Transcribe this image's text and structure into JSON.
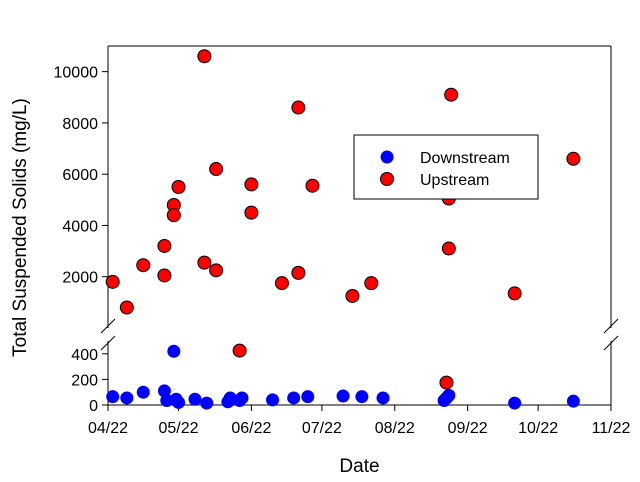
{
  "chart_data": {
    "type": "scatter",
    "title": "",
    "xlabel": "Date",
    "ylabel": "Total Suspended Solids (mg/L)",
    "x_unit": "date (MM/YY)",
    "x_ticks": [
      "04/22",
      "05/22",
      "06/22",
      "07/22",
      "08/22",
      "09/22",
      "10/22",
      "11/22"
    ],
    "xlim": [
      "2022-04-01",
      "2022-11-01"
    ],
    "y_axis_broken": true,
    "y_lower_range": [
      0,
      500
    ],
    "y_lower_ticks": [
      0,
      200,
      400
    ],
    "y_upper_range": [
      0,
      11000
    ],
    "y_upper_ticks": [
      2000,
      4000,
      6000,
      8000,
      10000
    ],
    "grid": false,
    "legend": "upper-right inside plot",
    "series": [
      {
        "name": "Downstream",
        "color": "#0000ff",
        "points": [
          {
            "x": "2022-04-03",
            "y": 65
          },
          {
            "x": "2022-04-09",
            "y": 55
          },
          {
            "x": "2022-04-16",
            "y": 100
          },
          {
            "x": "2022-04-25",
            "y": 110
          },
          {
            "x": "2022-04-26",
            "y": 35
          },
          {
            "x": "2022-04-29",
            "y": 420
          },
          {
            "x": "2022-04-30",
            "y": 45
          },
          {
            "x": "2022-05-01",
            "y": 20
          },
          {
            "x": "2022-05-08",
            "y": 45
          },
          {
            "x": "2022-05-13",
            "y": 15
          },
          {
            "x": "2022-05-22",
            "y": 25
          },
          {
            "x": "2022-05-23",
            "y": 55
          },
          {
            "x": "2022-05-27",
            "y": 35
          },
          {
            "x": "2022-05-28",
            "y": 55
          },
          {
            "x": "2022-06-10",
            "y": 40
          },
          {
            "x": "2022-06-19",
            "y": 55
          },
          {
            "x": "2022-06-25",
            "y": 65
          },
          {
            "x": "2022-07-10",
            "y": 70
          },
          {
            "x": "2022-07-18",
            "y": 65
          },
          {
            "x": "2022-07-27",
            "y": 55
          },
          {
            "x": "2022-08-22",
            "y": 35
          },
          {
            "x": "2022-08-23",
            "y": 55
          },
          {
            "x": "2022-08-24",
            "y": 75
          },
          {
            "x": "2022-09-21",
            "y": 15
          },
          {
            "x": "2022-10-16",
            "y": 30
          }
        ]
      },
      {
        "name": "Upstream",
        "color": "#ff0000",
        "points": [
          {
            "x": "2022-04-03",
            "y": 1800
          },
          {
            "x": "2022-04-09",
            "y": 800
          },
          {
            "x": "2022-04-16",
            "y": 2450
          },
          {
            "x": "2022-04-25",
            "y": 3200
          },
          {
            "x": "2022-04-25",
            "y": 2050
          },
          {
            "x": "2022-04-29",
            "y": 4800
          },
          {
            "x": "2022-04-29",
            "y": 4400
          },
          {
            "x": "2022-05-01",
            "y": 5500
          },
          {
            "x": "2022-05-12",
            "y": 10600
          },
          {
            "x": "2022-05-12",
            "y": 2550
          },
          {
            "x": "2022-05-17",
            "y": 6200
          },
          {
            "x": "2022-05-17",
            "y": 2250
          },
          {
            "x": "2022-05-27",
            "y": 425
          },
          {
            "x": "2022-06-01",
            "y": 5600
          },
          {
            "x": "2022-06-01",
            "y": 4500
          },
          {
            "x": "2022-06-14",
            "y": 1750
          },
          {
            "x": "2022-06-21",
            "y": 8600
          },
          {
            "x": "2022-06-21",
            "y": 2150
          },
          {
            "x": "2022-06-27",
            "y": 5550
          },
          {
            "x": "2022-07-14",
            "y": 1250
          },
          {
            "x": "2022-07-22",
            "y": 1750
          },
          {
            "x": "2022-08-23",
            "y": 175
          },
          {
            "x": "2022-08-24",
            "y": 5050
          },
          {
            "x": "2022-08-24",
            "y": 3100
          },
          {
            "x": "2022-08-25",
            "y": 9100
          },
          {
            "x": "2022-09-21",
            "y": 1350
          },
          {
            "x": "2022-10-16",
            "y": 6600
          }
        ]
      }
    ]
  }
}
